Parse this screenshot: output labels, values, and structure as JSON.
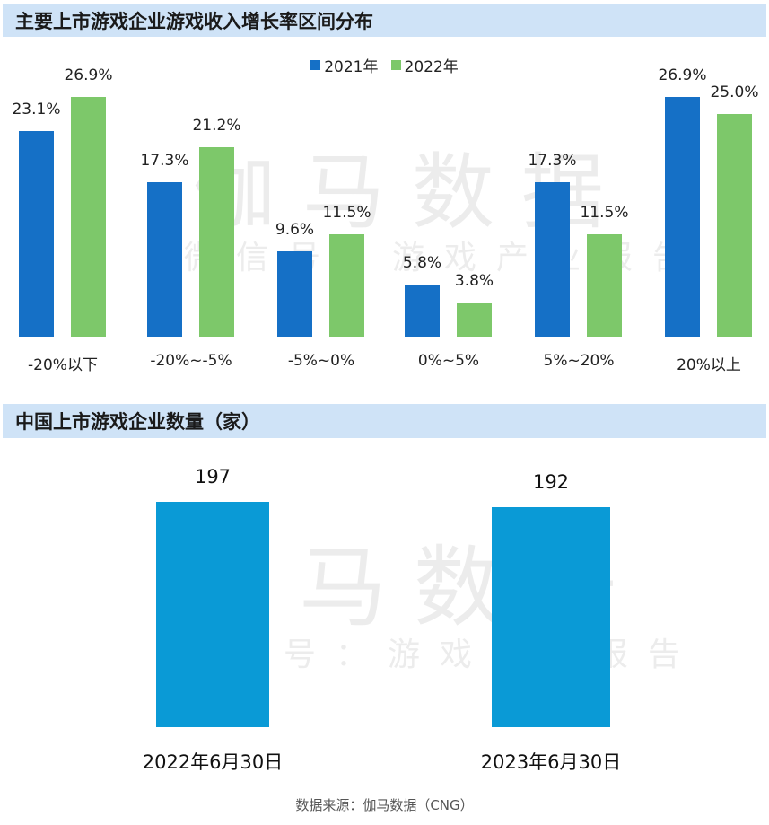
{
  "sections": {
    "growth_title": "主要上市游戏企业游戏收入增长率区间分布",
    "count_title": "中国上市游戏企业数量（家）"
  },
  "legend": [
    {
      "label": "2021年",
      "color": "#1570c6"
    },
    {
      "label": "2022年",
      "color": "#7dc86a"
    }
  ],
  "watermark": {
    "main": "伽马数据",
    "sub": "微信号：游戏产业报告"
  },
  "chart1": {
    "categories": [
      "-20%以下",
      "-20%~-5%",
      "-5%~0%",
      "0%~5%",
      "5%~20%",
      "20%以上"
    ],
    "labels2021": [
      "23.1%",
      "17.3%",
      "9.6%",
      "5.8%",
      "17.3%",
      "26.9%"
    ],
    "labels2022": [
      "26.9%",
      "21.2%",
      "11.5%",
      "3.8%",
      "11.5%",
      "25.0%"
    ]
  },
  "chart2": {
    "categories": [
      "2022年6月30日",
      "2023年6月30日"
    ],
    "labels": [
      "197",
      "192"
    ]
  },
  "source": "数据来源：伽马数据（CNG）",
  "chart_data": [
    {
      "type": "bar",
      "title": "主要上市游戏企业游戏收入增长率区间分布",
      "categories": [
        "-20%以下",
        "-20%~-5%",
        "-5%~0%",
        "0%~5%",
        "5%~20%",
        "20%以上"
      ],
      "series": [
        {
          "name": "2021年",
          "color": "#1570c6",
          "values": [
            23.1,
            17.3,
            9.6,
            5.8,
            17.3,
            26.9
          ]
        },
        {
          "name": "2022年",
          "color": "#7dc86a",
          "values": [
            26.9,
            21.2,
            11.5,
            3.8,
            11.5,
            25.0
          ]
        }
      ],
      "xlabel": "",
      "ylabel": "",
      "unit": "%",
      "legend_position": "top",
      "grid": false
    },
    {
      "type": "bar",
      "title": "中国上市游戏企业数量（家）",
      "categories": [
        "2022年6月30日",
        "2023年6月30日"
      ],
      "values": [
        197,
        192
      ],
      "color": "#0a9ad6",
      "xlabel": "",
      "ylabel": "",
      "grid": false
    }
  ]
}
